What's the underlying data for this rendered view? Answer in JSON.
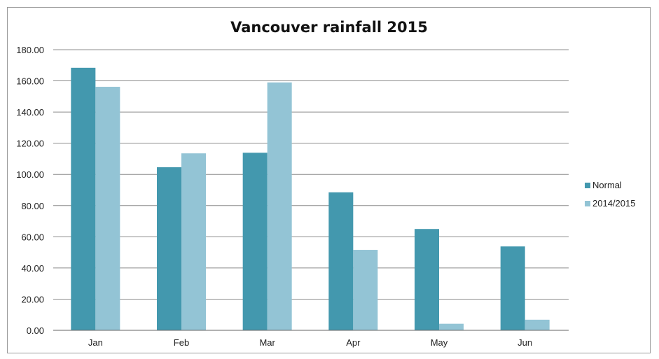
{
  "chart_data": {
    "type": "bar",
    "title": "Vancouver rainfall 2015",
    "categories": [
      "Jan",
      "Feb",
      "Mar",
      "Apr",
      "May",
      "Jun"
    ],
    "series": [
      {
        "name": "Normal",
        "color": "#4398ae",
        "values": [
          168.4,
          104.6,
          113.9,
          88.5,
          65.0,
          53.8
        ]
      },
      {
        "name": "2014/2015",
        "color": "#93c4d5",
        "values": [
          156.2,
          113.5,
          159.0,
          51.6,
          4.2,
          6.8
        ]
      }
    ],
    "ylim": [
      0,
      180
    ],
    "yticks": [
      "0.00",
      "20.00",
      "40.00",
      "60.00",
      "80.00",
      "100.00",
      "120.00",
      "140.00",
      "160.00",
      "180.00"
    ],
    "grid": true,
    "legend_position": "right"
  }
}
